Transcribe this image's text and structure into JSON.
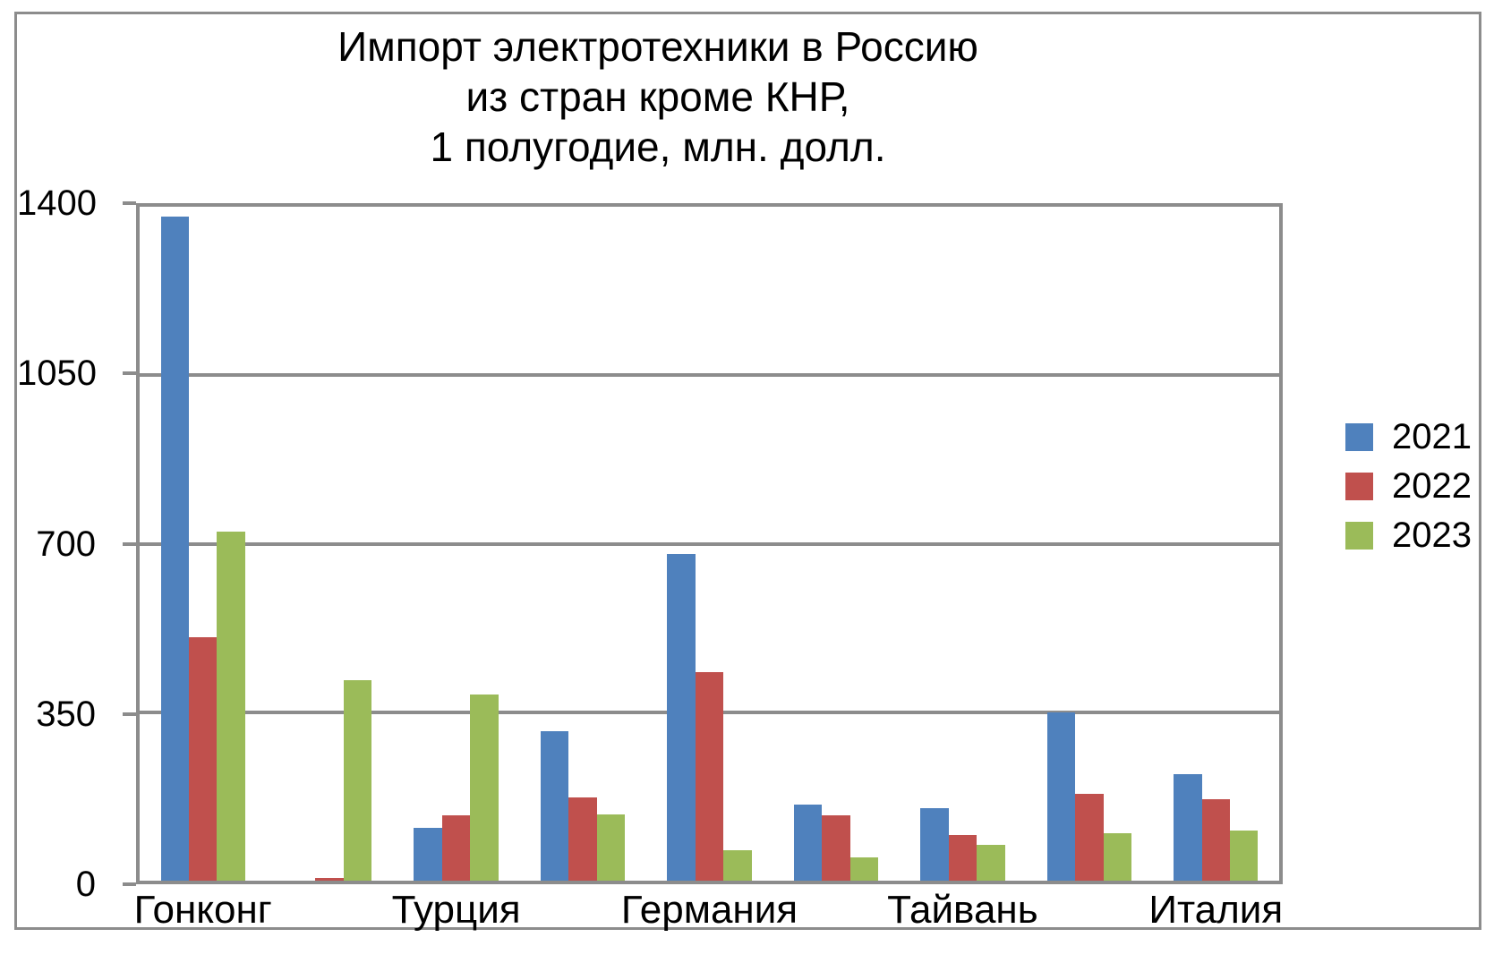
{
  "title": {
    "line1": "Импорт электротехники в Россию",
    "line2": "из стран кроме КНР,",
    "line3": "1 полугодие, млн. долл."
  },
  "colors": {
    "frame_border": "#8c8c8c",
    "gridline": "#8c8c8c",
    "background": "#ffffff",
    "text": "#000000"
  },
  "chart_data": {
    "type": "bar",
    "title": "Импорт электротехники в Россию из стран кроме КНР, 1 полугодие, млн. долл.",
    "xlabel": "",
    "ylabel": "",
    "ylim": [
      0,
      1400
    ],
    "yticks": [
      0,
      350,
      700,
      1050,
      1400
    ],
    "grid": true,
    "legend_position": "right",
    "x_labels_shown": "every other category",
    "categories": [
      "Гонконг",
      "",
      "Турция",
      "",
      "Германия",
      "",
      "Тайвань",
      "",
      "Италия"
    ],
    "series": [
      {
        "name": "2021",
        "color": "#4F81BD",
        "values": [
          1380,
          0,
          110,
          311,
          678,
          158,
          151,
          349,
          221
        ]
      },
      {
        "name": "2022",
        "color": "#C0504D",
        "values": [
          505,
          6,
          136,
          173,
          433,
          136,
          94,
          180,
          169
        ]
      },
      {
        "name": "2023",
        "color": "#9BBB59",
        "values": [
          726,
          416,
          387,
          138,
          64,
          48,
          75,
          99,
          105
        ]
      }
    ]
  }
}
